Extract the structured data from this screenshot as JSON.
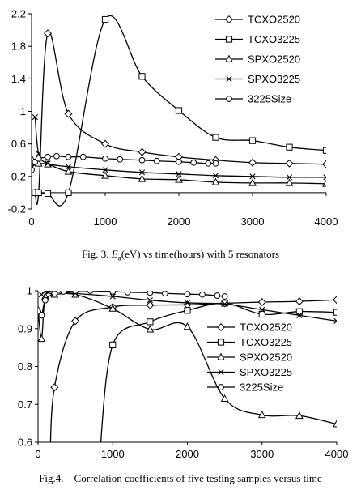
{
  "figure1": {
    "caption_prefix": "Fig. 3. ",
    "caption_symbol": "E",
    "caption_subscript": "a",
    "caption_suffix": "(eV) vs time(hours) with 5 resonators",
    "chart_data": {
      "type": "line",
      "xlim": [
        0,
        4000
      ],
      "ylim": [
        -0.2,
        2.2
      ],
      "x_ticks": [
        "0",
        "1000",
        "2000",
        "3000",
        "4000"
      ],
      "y_ticks": [
        "-0.2",
        "0.2",
        "0.6",
        "1",
        "1.4",
        "1.8",
        "2.2"
      ],
      "legend_position": "upper-right",
      "grid": false,
      "smooth": true,
      "series": [
        {
          "name": "TCXO2520",
          "marker": "diamond",
          "x": [
            48,
            96,
            220,
            500,
            1000,
            1500,
            2000,
            2500,
            3000,
            3500,
            4000
          ],
          "y": [
            0.0,
            0.0,
            1.96,
            0.97,
            0.6,
            0.5,
            0.44,
            0.4,
            0.37,
            0.36,
            0.35
          ]
        },
        {
          "name": "TCXO3225",
          "marker": "square",
          "x": [
            48,
            96,
            220,
            500,
            1000,
            1500,
            2000,
            2500,
            3000,
            3500,
            4000
          ],
          "y": [
            0.0,
            0.0,
            -0.01,
            0.0,
            2.13,
            1.43,
            1.01,
            0.68,
            0.64,
            0.56,
            0.52
          ]
        },
        {
          "name": "SPXO2520",
          "marker": "triangle",
          "x": [
            0,
            48,
            96,
            220,
            500,
            1000,
            1500,
            2000,
            2500,
            3000,
            3500,
            4000
          ],
          "y": [
            0.42,
            0.37,
            0.36,
            0.35,
            0.26,
            0.21,
            0.17,
            0.16,
            0.13,
            0.12,
            0.12,
            0.11
          ]
        },
        {
          "name": "SPXO3225",
          "marker": "cross",
          "x": [
            48,
            96,
            220,
            500,
            1000,
            1500,
            2000,
            2500,
            3000,
            3500,
            4000
          ],
          "y": [
            0.93,
            0.48,
            0.36,
            0.32,
            0.28,
            0.25,
            0.23,
            0.21,
            0.2,
            0.19,
            0.19
          ]
        },
        {
          "name": "3225Size",
          "marker": "circle",
          "x": [
            0,
            48,
            96,
            220,
            340,
            500,
            700,
            1000,
            1200,
            1500,
            1700,
            2000,
            2200,
            2400,
            2500
          ],
          "y": [
            0.28,
            0.38,
            0.42,
            0.44,
            0.45,
            0.44,
            0.44,
            0.42,
            0.41,
            0.4,
            0.39,
            0.38,
            0.37,
            0.36,
            0.36
          ]
        }
      ]
    }
  },
  "figure2": {
    "caption": "Fig.4.    Correlation coefficients of five testing samples versus time",
    "chart_data": {
      "type": "line",
      "xlim": [
        0,
        4000
      ],
      "ylim": [
        0.6,
        1.0
      ],
      "x_ticks": [
        "0",
        "1000",
        "2000",
        "3000",
        "4000"
      ],
      "y_ticks": [
        "0.6",
        "0.7",
        "0.8",
        "0.9",
        "1"
      ],
      "legend_position": "center-right",
      "grid": false,
      "smooth": true,
      "series": [
        {
          "name": "TCXO2520",
          "marker": "diamond",
          "x": [
            160,
            220,
            500,
            1000,
            1500,
            2000,
            2500,
            3000,
            3500,
            4000
          ],
          "y": [
            0.55,
            0.745,
            0.92,
            0.957,
            0.962,
            0.963,
            0.967,
            0.97,
            0.972,
            0.976
          ]
        },
        {
          "name": "TCXO3225",
          "marker": "square",
          "x": [
            820,
            1000,
            1500,
            2000,
            2500,
            3000,
            3500,
            4000
          ],
          "y": [
            0.55,
            0.857,
            0.918,
            0.948,
            0.967,
            0.938,
            0.945,
            0.943
          ]
        },
        {
          "name": "SPXO2520",
          "marker": "triangle",
          "x": [
            0,
            48,
            96,
            220,
            500,
            1000,
            1500,
            2000,
            2500,
            3000,
            3500,
            4000
          ],
          "y": [
            0.95,
            0.873,
            0.985,
            0.99,
            0.99,
            0.953,
            0.898,
            0.905,
            0.715,
            0.672,
            0.67,
            0.648
          ]
        },
        {
          "name": "SPXO3225",
          "marker": "cross",
          "x": [
            48,
            96,
            220,
            500,
            1000,
            1500,
            2000,
            2500,
            3000,
            3500,
            4000
          ],
          "y": [
            0.99,
            0.999,
            0.997,
            0.993,
            0.985,
            0.975,
            0.968,
            0.965,
            0.95,
            0.935,
            0.92
          ]
        },
        {
          "name": "3225Size",
          "marker": "circle",
          "x": [
            0,
            48,
            96,
            220,
            340,
            500,
            700,
            1000,
            1200,
            1500,
            1700,
            2000,
            2200,
            2400,
            2500
          ],
          "y": [
            0.945,
            0.935,
            0.975,
            0.993,
            0.998,
            1.0,
            1.0,
            0.998,
            0.996,
            0.995,
            0.993,
            0.991,
            0.99,
            0.987,
            0.985
          ]
        }
      ]
    }
  }
}
